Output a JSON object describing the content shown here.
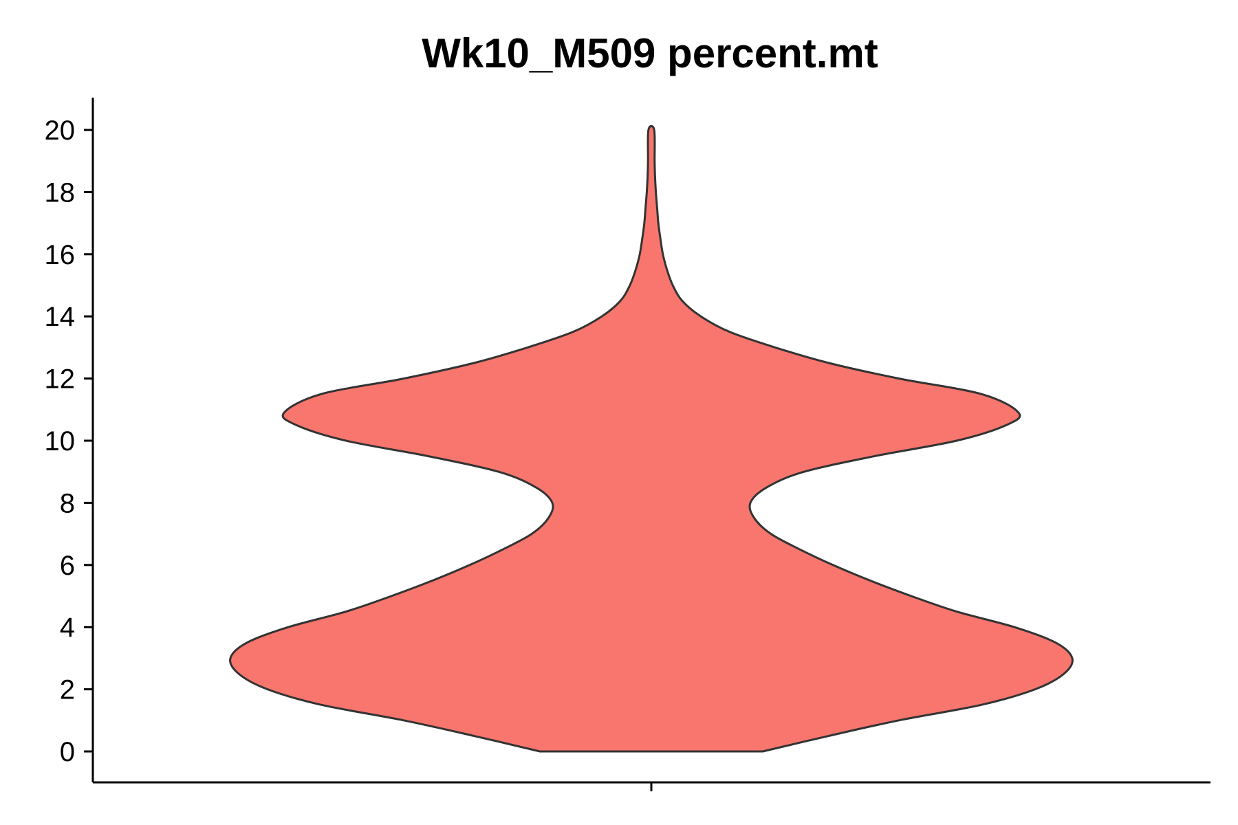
{
  "chart_data": {
    "type": "violin",
    "title": "Wk10_M509 percent.mt",
    "xlabel": "",
    "ylabel": "",
    "ylim": [
      -1,
      21
    ],
    "y_ticks": [
      0,
      2,
      4,
      6,
      8,
      10,
      12,
      14,
      16,
      18,
      20
    ],
    "y_tick_labels": [
      "0",
      "2",
      "4",
      "6",
      "8",
      "10",
      "12",
      "14",
      "16",
      "18",
      "20"
    ],
    "grid": false,
    "legend": "none",
    "fill_color": "#F8766D",
    "outline_color": "#333333",
    "categories": [
      ""
    ],
    "density": [
      {
        "y": 0.0,
        "w": 0.27
      },
      {
        "y": 0.5,
        "w": 0.43
      },
      {
        "y": 1.0,
        "w": 0.6
      },
      {
        "y": 1.5,
        "w": 0.8
      },
      {
        "y": 2.0,
        "w": 0.93
      },
      {
        "y": 2.5,
        "w": 1.0
      },
      {
        "y": 3.0,
        "w": 1.02
      },
      {
        "y": 3.5,
        "w": 0.98
      },
      {
        "y": 4.0,
        "w": 0.88
      },
      {
        "y": 4.5,
        "w": 0.74
      },
      {
        "y": 5.0,
        "w": 0.63
      },
      {
        "y": 5.5,
        "w": 0.53
      },
      {
        "y": 6.0,
        "w": 0.44
      },
      {
        "y": 6.5,
        "w": 0.36
      },
      {
        "y": 7.0,
        "w": 0.29
      },
      {
        "y": 7.5,
        "w": 0.25
      },
      {
        "y": 8.0,
        "w": 0.24
      },
      {
        "y": 8.5,
        "w": 0.28
      },
      {
        "y": 9.0,
        "w": 0.37
      },
      {
        "y": 9.5,
        "w": 0.54
      },
      {
        "y": 10.0,
        "w": 0.74
      },
      {
        "y": 10.5,
        "w": 0.86
      },
      {
        "y": 10.9,
        "w": 0.89
      },
      {
        "y": 11.5,
        "w": 0.8
      },
      {
        "y": 12.0,
        "w": 0.6
      },
      {
        "y": 12.5,
        "w": 0.43
      },
      {
        "y": 13.0,
        "w": 0.3
      },
      {
        "y": 13.5,
        "w": 0.19
      },
      {
        "y": 14.0,
        "w": 0.12
      },
      {
        "y": 14.5,
        "w": 0.075
      },
      {
        "y": 15.0,
        "w": 0.052
      },
      {
        "y": 15.5,
        "w": 0.038
      },
      {
        "y": 16.0,
        "w": 0.028
      },
      {
        "y": 16.5,
        "w": 0.022
      },
      {
        "y": 17.0,
        "w": 0.017
      },
      {
        "y": 17.5,
        "w": 0.014
      },
      {
        "y": 18.0,
        "w": 0.011
      },
      {
        "y": 18.5,
        "w": 0.009
      },
      {
        "y": 19.0,
        "w": 0.008
      },
      {
        "y": 20.0,
        "w": 0.007
      }
    ]
  }
}
